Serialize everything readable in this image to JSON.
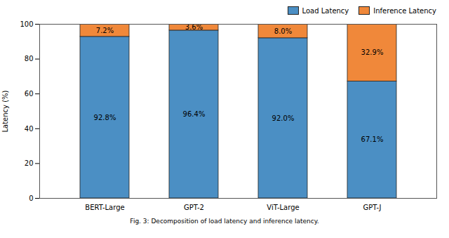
{
  "chart_data": {
    "type": "bar",
    "stacked": true,
    "categories": [
      "BERT-Large",
      "GPT-2",
      "ViT-Large",
      "GPT-J"
    ],
    "series": [
      {
        "name": "Load Latency",
        "color": "#4b8fc4",
        "values": [
          92.8,
          96.4,
          92.0,
          67.1
        ],
        "value_labels": [
          "92.8%",
          "96.4%",
          "92.0%",
          "67.1%"
        ]
      },
      {
        "name": "Inference Latency",
        "color": "#f0883a",
        "values": [
          7.2,
          3.6,
          8.0,
          32.9
        ],
        "value_labels": [
          "7.2%",
          "3.6%",
          "8.0%",
          "32.9%"
        ]
      }
    ],
    "ylabel": "Latency (%)",
    "ylim": [
      0,
      100
    ],
    "yticks": [
      0,
      20,
      40,
      60,
      80,
      100
    ],
    "data_labels": true,
    "grid": false,
    "legend": "upper right",
    "caption": "Fig. 3: Decomposition of load latency and inference latency."
  }
}
